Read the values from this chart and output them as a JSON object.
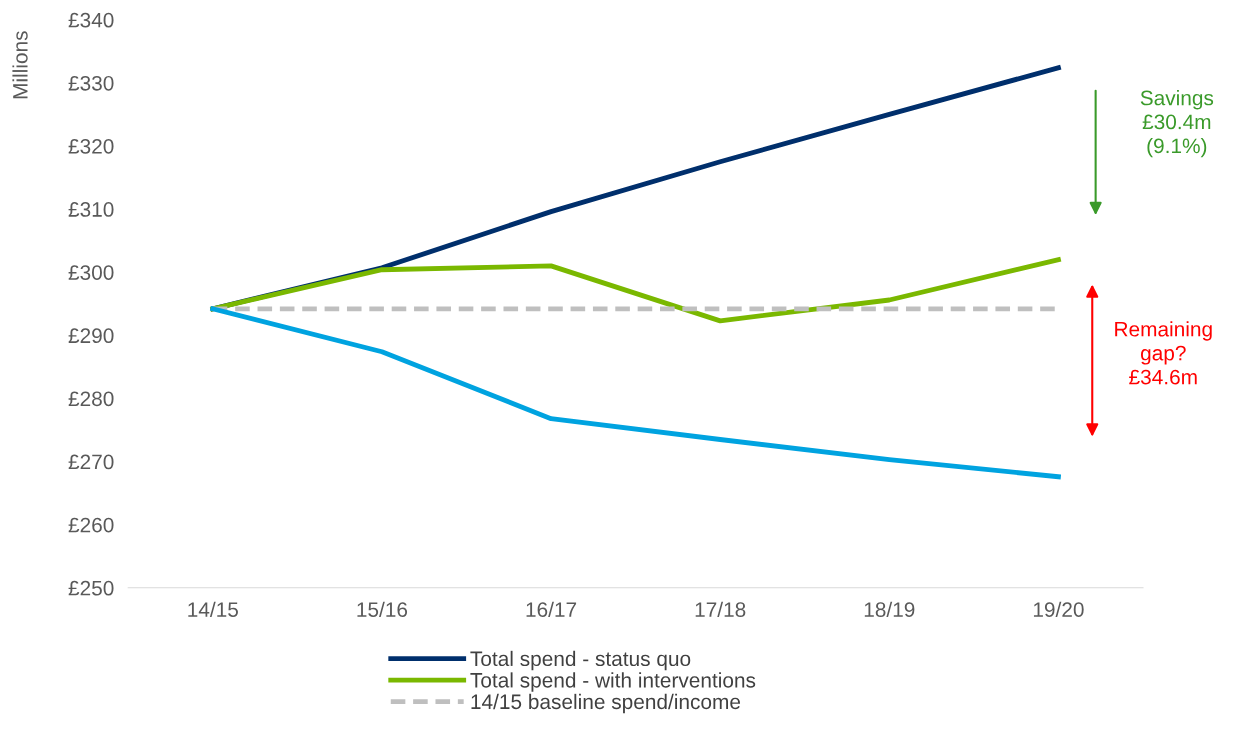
{
  "chart_data": {
    "type": "line",
    "ylabel": "Millions",
    "categories": [
      "14/15",
      "15/16",
      "16/17",
      "17/18",
      "18/19",
      "19/20"
    ],
    "ylim": [
      250,
      340
    ],
    "yticks": [
      {
        "value": 250,
        "label": "£250"
      },
      {
        "value": 260,
        "label": "£260"
      },
      {
        "value": 270,
        "label": "£270"
      },
      {
        "value": 280,
        "label": "£280"
      },
      {
        "value": 290,
        "label": "£290"
      },
      {
        "value": 300,
        "label": "£300"
      },
      {
        "value": 310,
        "label": "£310"
      },
      {
        "value": 320,
        "label": "£320"
      },
      {
        "value": 330,
        "label": "£330"
      },
      {
        "value": 340,
        "label": "£340"
      }
    ],
    "series": [
      {
        "name": "Total spend - status quo",
        "color": "#002f6c",
        "values": [
          294.2,
          300.7,
          309.6,
          317.5,
          325.0,
          332.4
        ]
      },
      {
        "name": "Total spend - with interventions",
        "color": "#7ab800",
        "values": [
          294.2,
          300.4,
          301.0,
          292.3,
          295.6,
          302.0
        ]
      },
      {
        "name": "14/15 baseline spend/income",
        "color": "#bfbfbf",
        "line_style": "dashed",
        "values": [
          294.2,
          294.2,
          294.2,
          294.2,
          294.2,
          294.2
        ]
      },
      {
        "color": "#00a3e0",
        "values": [
          294.2,
          287.4,
          276.8,
          273.5,
          270.3,
          267.6
        ]
      }
    ],
    "annotations": [
      "Savings\n£30.4m\n(9.1%)",
      "Remaining\ngap?\n£34.6m"
    ],
    "grid": false,
    "legend": "bottom",
    "marker": "none"
  }
}
